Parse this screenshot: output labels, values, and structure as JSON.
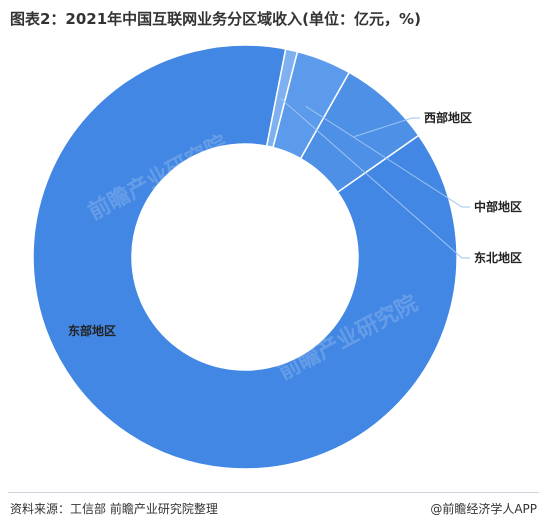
{
  "title": "图表2：2021年中国互联网业务分区域收入(单位：亿元，%)",
  "source": "资料来源：工信部 前瞻产业研究院整理",
  "brand": "@前瞻经济学人APP",
  "watermark": "前瞻产业研究院",
  "colors": {
    "east": "#4287e3",
    "west": "#4d90e6",
    "central": "#5c9bec",
    "northeast": "#7fb1f0",
    "separator": "#ffffff",
    "leader": "#9ec3f2"
  },
  "chart_data": {
    "type": "pie",
    "title": "图表2：2021年中国互联网业务分区域收入(单位：亿元，%)",
    "categories": [
      "东部地区",
      "西部地区",
      "中部地区",
      "东北地区"
    ],
    "values": [
      87.8,
      7.1,
      4.2,
      0.9
    ],
    "donut": true
  }
}
